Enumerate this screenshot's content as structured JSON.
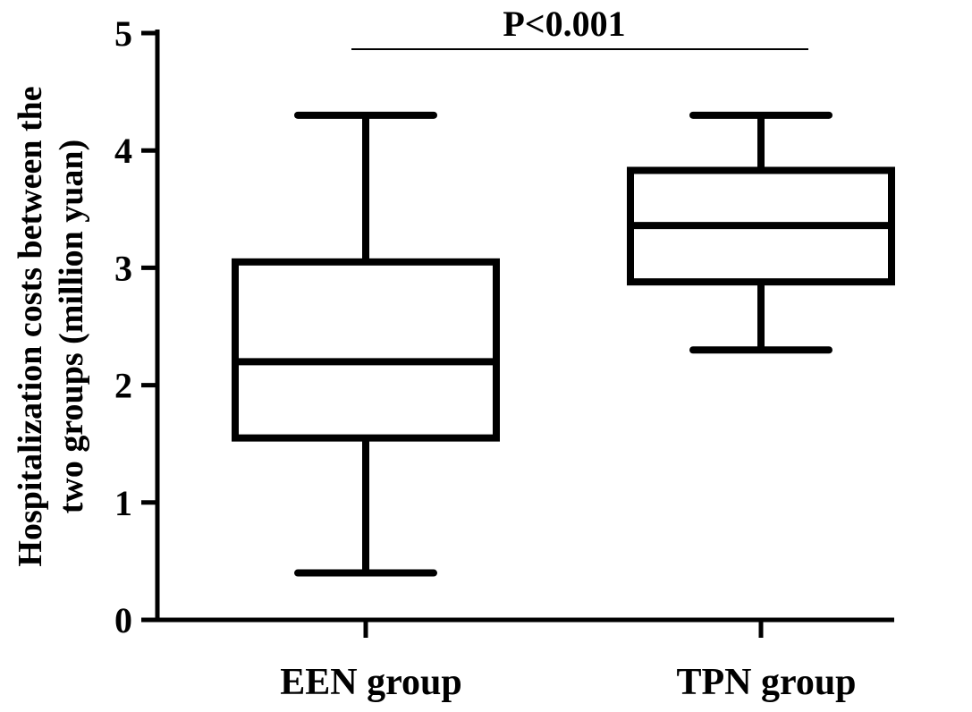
{
  "chart_data": {
    "type": "box",
    "title": "",
    "xlabel": "",
    "ylabel_lines": [
      "Hospitalization costs between the",
      "two groups (million yuan)"
    ],
    "ylim": [
      0,
      5
    ],
    "yticks": [
      "0",
      "1",
      "2",
      "3",
      "4",
      "5"
    ],
    "grid": false,
    "categories": [
      "EEN group",
      "TPN group"
    ],
    "boxes": [
      {
        "category": "EEN group",
        "min": 0.4,
        "q1": 1.55,
        "median": 2.2,
        "q3": 3.05,
        "max": 4.3
      },
      {
        "category": "TPN group",
        "min": 2.3,
        "q1": 2.88,
        "median": 3.36,
        "q3": 3.83,
        "max": 4.3
      }
    ],
    "annotation": {
      "text": "P<0.001",
      "between": [
        "EEN group",
        "TPN group"
      ]
    }
  }
}
